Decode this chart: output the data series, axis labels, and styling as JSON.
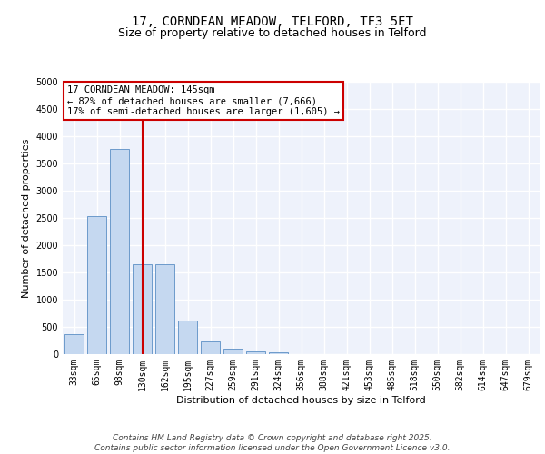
{
  "title_line1": "17, CORNDEAN MEADOW, TELFORD, TF3 5ET",
  "title_line2": "Size of property relative to detached houses in Telford",
  "xlabel": "Distribution of detached houses by size in Telford",
  "ylabel": "Number of detached properties",
  "categories": [
    "33sqm",
    "65sqm",
    "98sqm",
    "130sqm",
    "162sqm",
    "195sqm",
    "227sqm",
    "259sqm",
    "291sqm",
    "324sqm",
    "356sqm",
    "388sqm",
    "421sqm",
    "453sqm",
    "485sqm",
    "518sqm",
    "550sqm",
    "582sqm",
    "614sqm",
    "647sqm",
    "679sqm"
  ],
  "values": [
    370,
    2530,
    3760,
    1650,
    1650,
    620,
    230,
    100,
    55,
    35,
    0,
    0,
    0,
    0,
    0,
    0,
    0,
    0,
    0,
    0,
    0
  ],
  "bar_color": "#c5d8f0",
  "bar_edge_color": "#5b8ec4",
  "vline_color": "#cc0000",
  "vline_x_index": 3,
  "ylim": [
    0,
    5000
  ],
  "yticks": [
    0,
    500,
    1000,
    1500,
    2000,
    2500,
    3000,
    3500,
    4000,
    4500,
    5000
  ],
  "annotation_line1": "17 CORNDEAN MEADOW: 145sqm",
  "annotation_line2": "← 82% of detached houses are smaller (7,666)",
  "annotation_line3": "17% of semi-detached houses are larger (1,605) →",
  "annotation_box_color": "#cc0000",
  "annotation_box_facecolor": "white",
  "footer_line1": "Contains HM Land Registry data © Crown copyright and database right 2025.",
  "footer_line2": "Contains public sector information licensed under the Open Government Licence v3.0.",
  "bg_color": "#eef2fb",
  "grid_color": "white",
  "title_fontsize": 10,
  "subtitle_fontsize": 9,
  "axis_label_fontsize": 8,
  "tick_fontsize": 7,
  "annotation_fontsize": 7.5,
  "footer_fontsize": 6.5
}
